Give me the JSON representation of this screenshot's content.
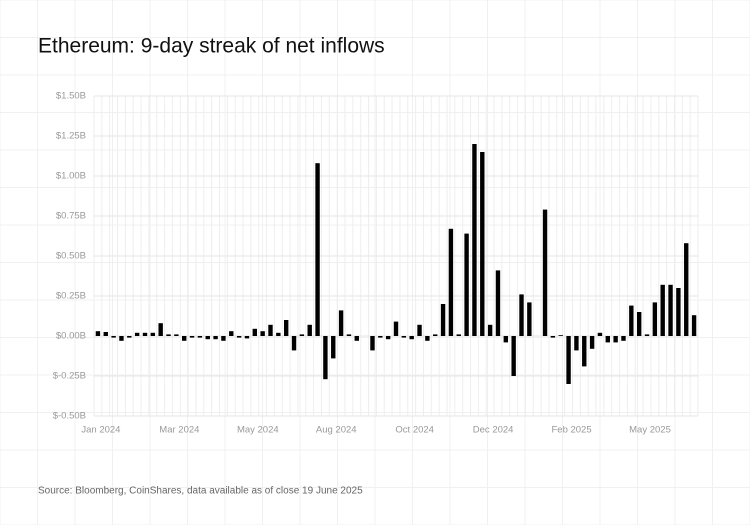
{
  "chart_data": {
    "type": "bar",
    "title": "Ethereum: 9-day streak of net inflows",
    "source": "Source: Bloomberg, CoinShares, data available as of close 19 June 2025",
    "categories": [
      "Jan 2024",
      null,
      null,
      null,
      null,
      null,
      null,
      null,
      null,
      null,
      "Mar 2024",
      null,
      null,
      null,
      null,
      null,
      null,
      null,
      null,
      null,
      "May 2024",
      null,
      null,
      null,
      null,
      null,
      null,
      null,
      null,
      null,
      "Aug 2024",
      null,
      null,
      null,
      null,
      null,
      null,
      null,
      null,
      null,
      "Oct 2024",
      null,
      null,
      null,
      null,
      null,
      null,
      null,
      null,
      null,
      "Dec 2024",
      null,
      null,
      null,
      null,
      null,
      null,
      null,
      null,
      null,
      "Feb 2025",
      null,
      null,
      null,
      null,
      null,
      null,
      null,
      null,
      null,
      "May 2025",
      null,
      null,
      null,
      null,
      null,
      null
    ],
    "values": [
      0.03,
      0.025,
      -0.01,
      -0.03,
      -0.01,
      0.02,
      0.02,
      0.02,
      0.08,
      0.01,
      0.01,
      -0.03,
      -0.01,
      -0.01,
      -0.02,
      -0.02,
      -0.03,
      0.03,
      -0.01,
      -0.015,
      0.045,
      0.03,
      0.07,
      0.02,
      0.1,
      -0.09,
      0.01,
      0.07,
      1.08,
      -0.27,
      -0.14,
      0.16,
      0.01,
      -0.03,
      0,
      -0.09,
      -0.01,
      -0.02,
      0.09,
      -0.01,
      -0.02,
      0.07,
      -0.03,
      0.01,
      0.2,
      0.67,
      0.01,
      0.64,
      1.2,
      1.15,
      0.07,
      0.41,
      -0.04,
      -0.25,
      0.26,
      0.21,
      0,
      0.79,
      -0.01,
      0.005,
      -0.3,
      -0.09,
      -0.19,
      -0.08,
      0.02,
      -0.04,
      -0.04,
      -0.03,
      0.19,
      0.15,
      0.01,
      0.21,
      0.32,
      0.32,
      0.3,
      0.58,
      0.13
    ],
    "color": "#000000",
    "ylim": [
      -0.5,
      1.5
    ],
    "yticks": [
      {
        "value": -0.5,
        "label": "$-0.50B"
      },
      {
        "value": -0.25,
        "label": "$-0.25B"
      },
      {
        "value": 0,
        "label": "$0.00B"
      },
      {
        "value": 0.25,
        "label": "$0.25B"
      },
      {
        "value": 0.5,
        "label": "$0.50B"
      },
      {
        "value": 0.75,
        "label": "$0.75B"
      },
      {
        "value": 1,
        "label": "$1.00B"
      },
      {
        "value": 1.25,
        "label": "$1.25B"
      },
      {
        "value": 1.5,
        "label": "$1.50B"
      }
    ],
    "grid": true
  }
}
